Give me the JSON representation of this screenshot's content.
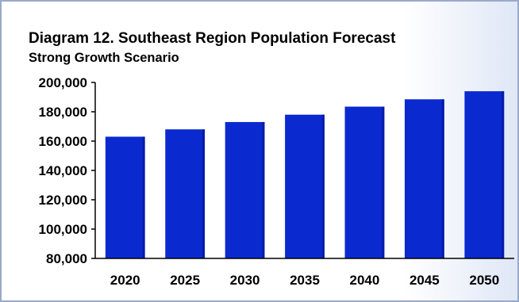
{
  "chart_data": {
    "type": "bar",
    "title": "Diagram 12. Southeast Region Population Forecast",
    "subtitle": "Strong Growth Scenario",
    "xlabel": "",
    "ylabel": "",
    "categories": [
      "2020",
      "2025",
      "2030",
      "2035",
      "2040",
      "2045",
      "2050"
    ],
    "values": [
      163000,
      168000,
      173000,
      178000,
      183500,
      188500,
      194000
    ],
    "ylim": [
      80000,
      200000
    ],
    "yticks": [
      80000,
      100000,
      120000,
      140000,
      160000,
      180000,
      200000
    ],
    "ytick_labels": [
      "80,000",
      "100,000",
      "120,000",
      "140,000",
      "160,000",
      "180,000",
      "200,000"
    ],
    "bar_color": "#0a2ad0",
    "grid": false,
    "legend": "none"
  }
}
